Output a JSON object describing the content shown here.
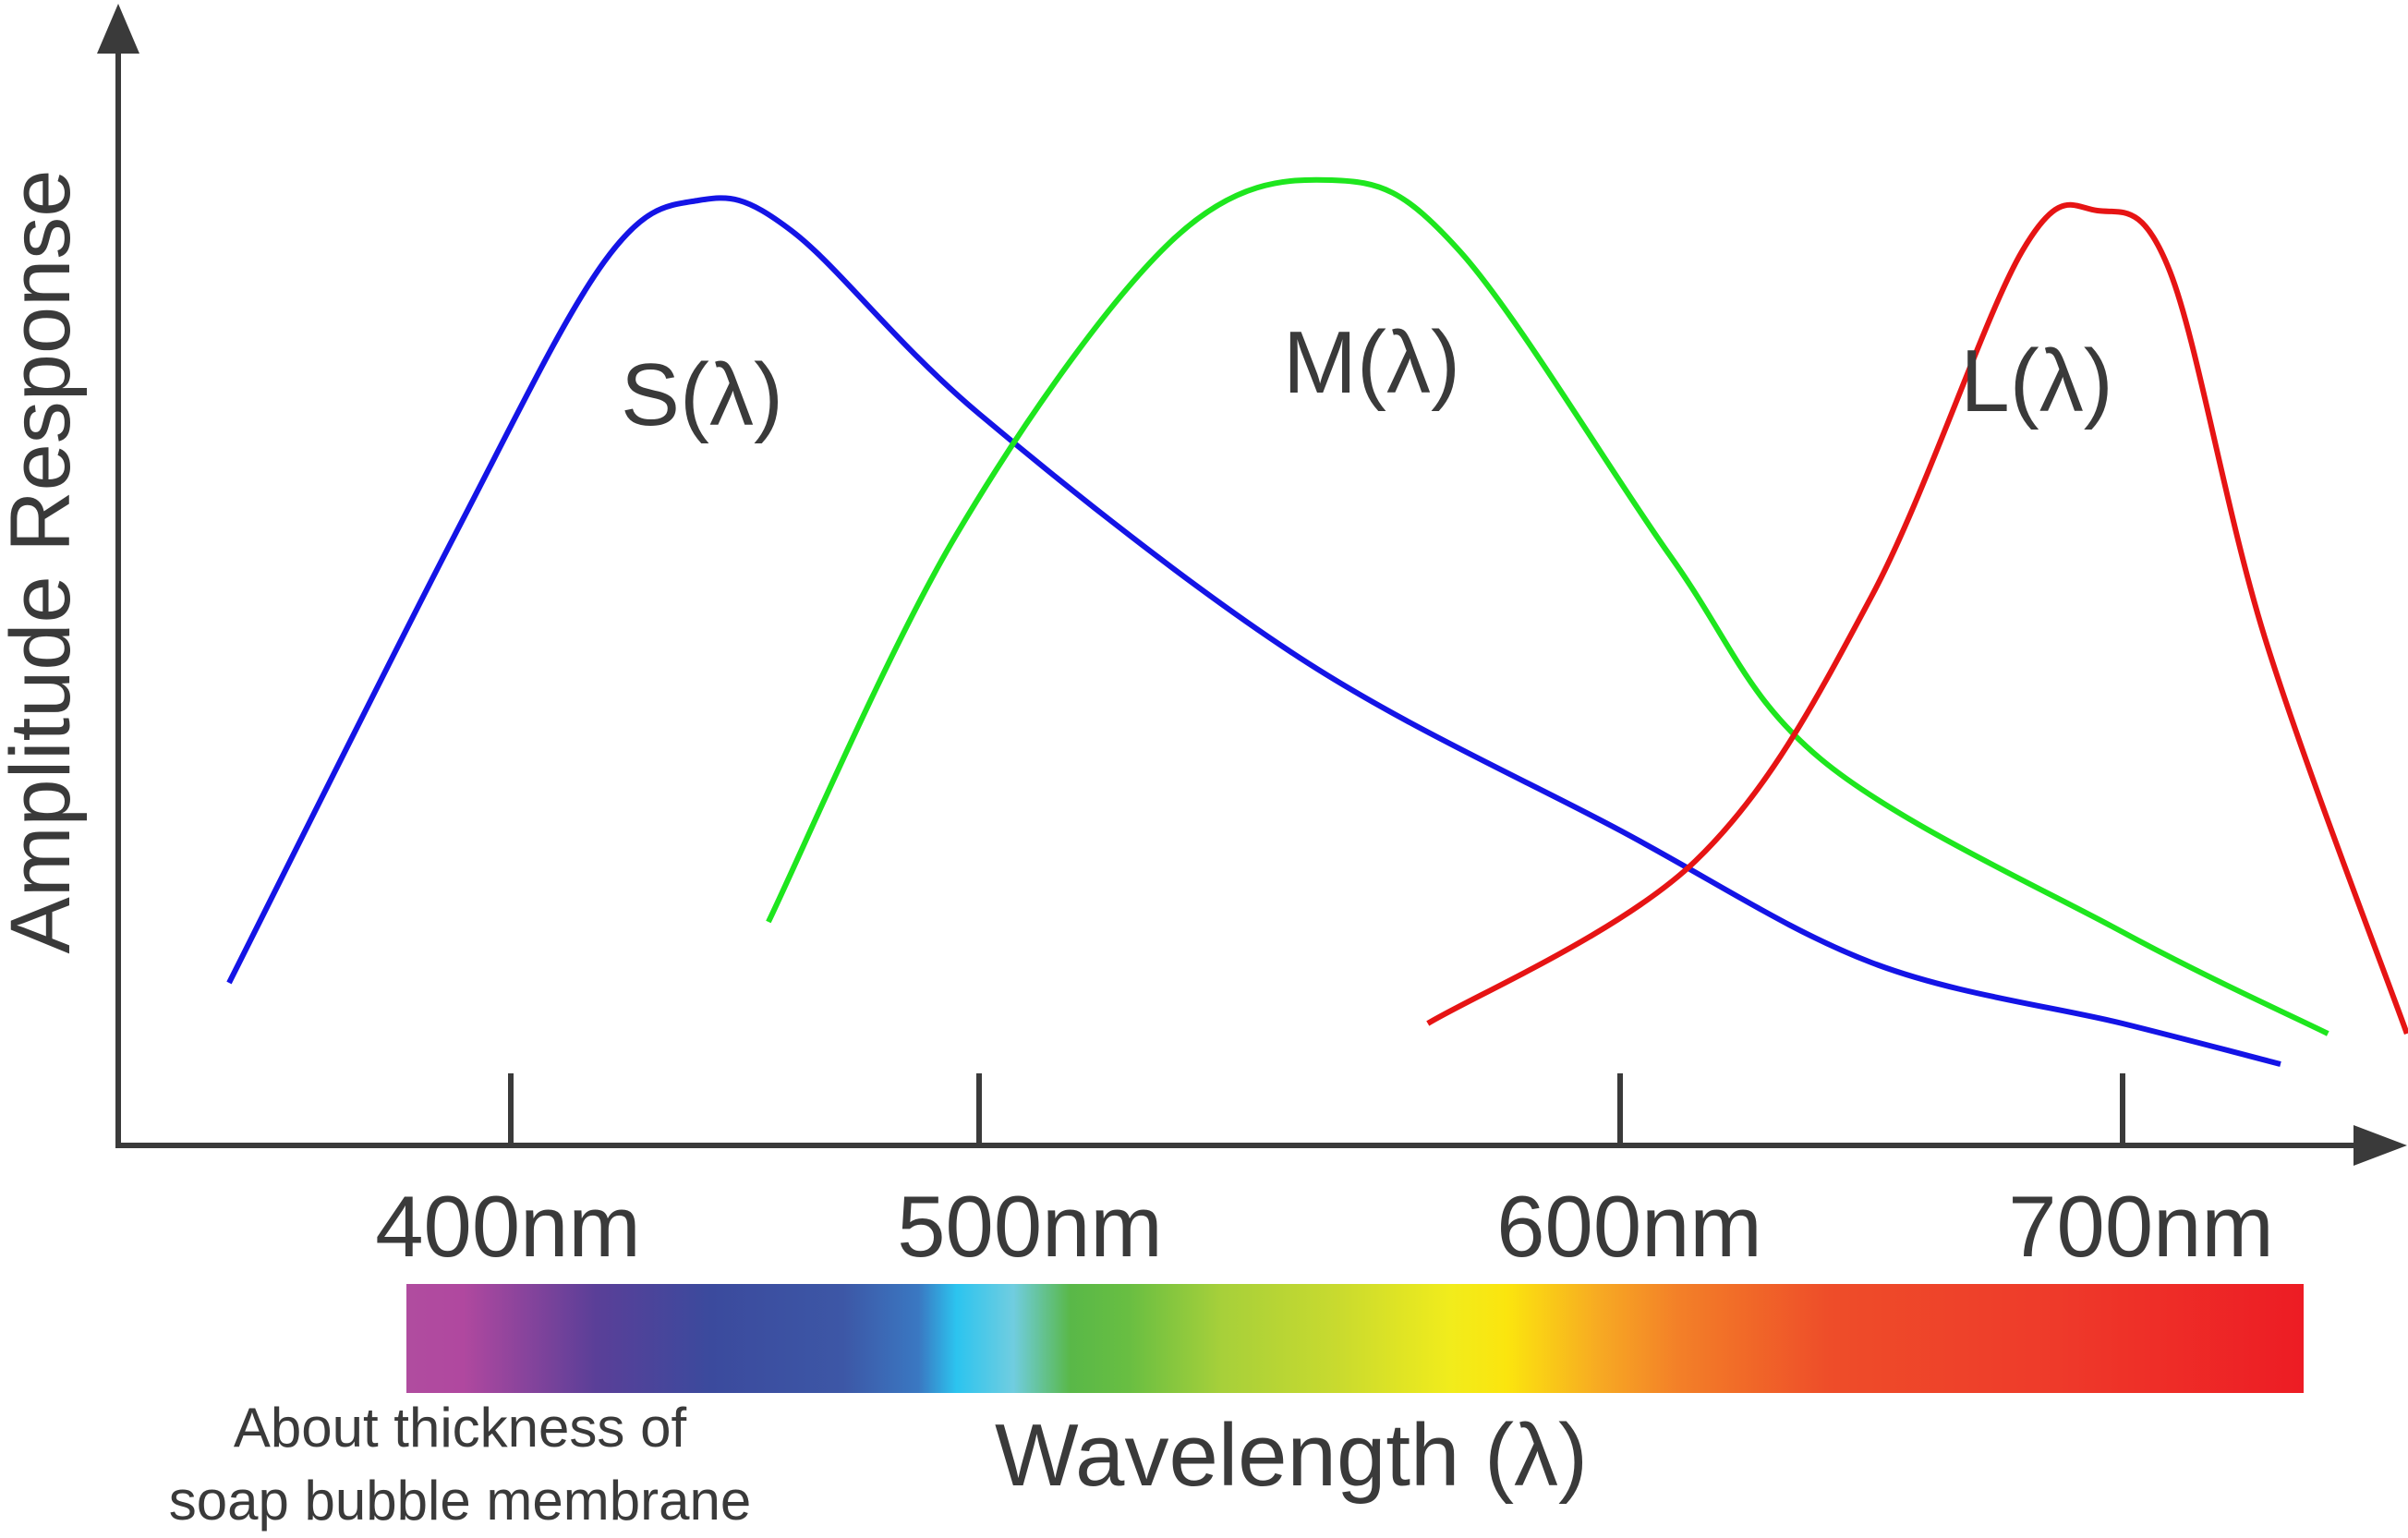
{
  "chart_data": {
    "type": "line",
    "title": "",
    "xlabel": "Wavelength (λ)",
    "ylabel": "Amplitude Response",
    "x_ticks": [
      400,
      500,
      600,
      700
    ],
    "x_tick_labels": [
      "400nm",
      "500nm",
      "600nm",
      "700nm"
    ],
    "x_tick_unit": "nm",
    "grid": false,
    "series": [
      {
        "name": "S(λ)",
        "color": "#1414e6",
        "points": [
          [
            350,
            0.16
          ],
          [
            390,
            0.6
          ],
          [
            420,
            0.87
          ],
          [
            440,
            0.93
          ],
          [
            460,
            0.9
          ],
          [
            500,
            0.72
          ],
          [
            550,
            0.48
          ],
          [
            600,
            0.31
          ],
          [
            650,
            0.18
          ],
          [
            700,
            0.12
          ],
          [
            750,
            0.08
          ]
        ]
      },
      {
        "name": "M(λ)",
        "color": "#1ee61e",
        "points": [
          [
            455,
            0.22
          ],
          [
            495,
            0.6
          ],
          [
            530,
            0.89
          ],
          [
            555,
            0.95
          ],
          [
            575,
            0.88
          ],
          [
            610,
            0.58
          ],
          [
            640,
            0.38
          ],
          [
            700,
            0.21
          ],
          [
            765,
            0.11
          ]
        ]
      },
      {
        "name": "L(λ)",
        "color": "#e61414",
        "points": [
          [
            570,
            0.12
          ],
          [
            615,
            0.28
          ],
          [
            650,
            0.54
          ],
          [
            680,
            0.88
          ],
          [
            695,
            0.92
          ],
          [
            715,
            0.86
          ],
          [
            745,
            0.5
          ],
          [
            790,
            0.11
          ]
        ]
      }
    ],
    "spectrum_bar_colors": [
      "#b0489f",
      "#5a3f98",
      "#3b509f",
      "#2cc4ef",
      "#66bf45",
      "#d4e030",
      "#fbea13",
      "#f7931e",
      "#ef4b26",
      "#ee1c25"
    ],
    "annotations": [
      "About thickness of",
      "soap bubble membrane"
    ]
  }
}
